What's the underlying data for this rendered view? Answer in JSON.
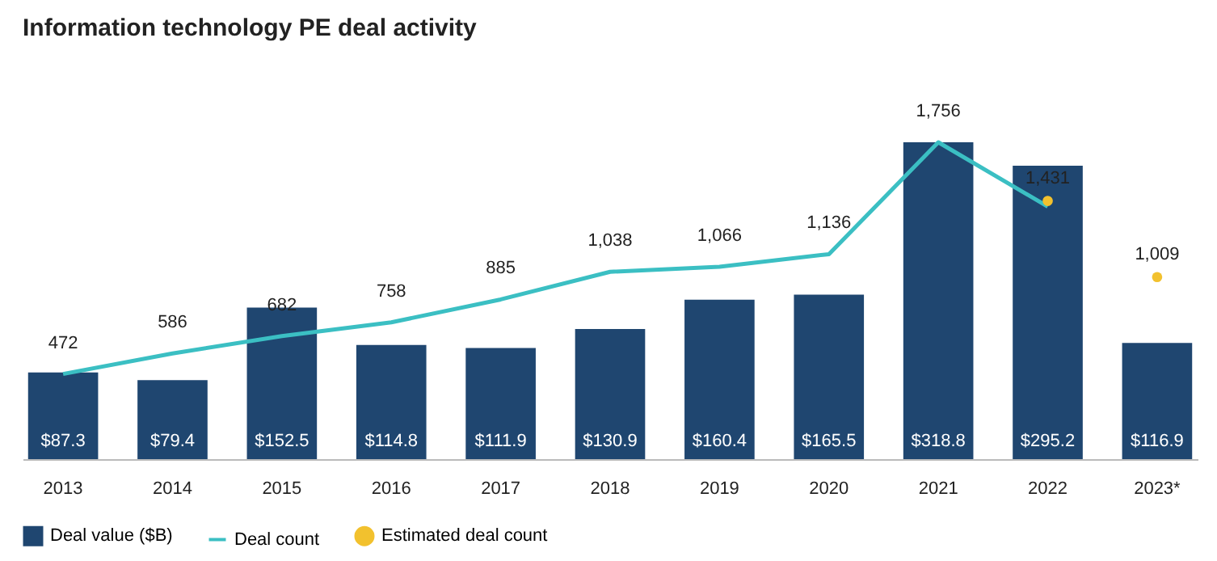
{
  "chart_data": {
    "type": "bar",
    "title": "Information technology PE deal activity",
    "categories": [
      "2013",
      "2014",
      "2015",
      "2016",
      "2017",
      "2018",
      "2019",
      "2020",
      "2021",
      "2022",
      "2023*"
    ],
    "series": [
      {
        "name": "Deal value ($B)",
        "color": "#1f4670",
        "values": [
          87.3,
          79.4,
          152.5,
          114.8,
          111.9,
          130.9,
          160.4,
          165.5,
          318.8,
          295.2,
          116.9
        ],
        "value_labels": [
          "$87.3",
          "$79.4",
          "$152.5",
          "$114.8",
          "$111.9",
          "$130.9",
          "$160.4",
          "$165.5",
          "$318.8",
          "$295.2",
          "$116.9"
        ]
      },
      {
        "name": "Deal count",
        "type": "line",
        "axis": "y2",
        "color": "#3bbfc3",
        "values": [
          472,
          586,
          682,
          758,
          885,
          1038,
          1066,
          1136,
          1756,
          1400,
          null
        ],
        "value_labels": [
          "472",
          "586",
          "682",
          "758",
          "885",
          "1,038",
          "1,066",
          "1,136",
          "1,756",
          null,
          null
        ]
      },
      {
        "name": "Estimated deal count",
        "type": "scatter",
        "axis": "y2",
        "color": "#f2c12e",
        "values": [
          null,
          null,
          null,
          null,
          null,
          null,
          null,
          null,
          null,
          1431,
          1009
        ],
        "value_labels": [
          null,
          null,
          null,
          null,
          null,
          null,
          null,
          null,
          null,
          "1,431",
          "1,009"
        ]
      }
    ],
    "tick_labels": "x",
    "legend": "bottom"
  }
}
